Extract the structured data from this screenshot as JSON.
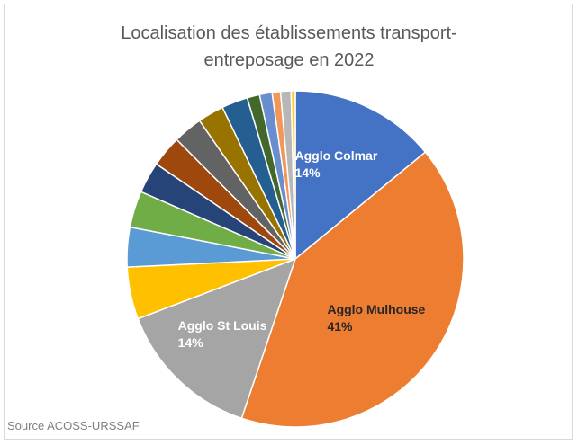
{
  "chart_data": {
    "type": "pie",
    "title": "Localisation des établissements transport-entreposage en 2022",
    "source": "Source ACOSS-URSSAF",
    "categories": [
      "Agglo Colmar",
      "Agglo Mulhouse",
      "Agglo St Louis",
      null,
      null,
      null,
      null,
      null,
      null,
      null,
      null,
      null,
      null,
      null,
      null,
      null
    ],
    "values": [
      14,
      41,
      14,
      5,
      3.8,
      3.5,
      3,
      3,
      2.8,
      2.5,
      2.5,
      1.2,
      1.2,
      0.8,
      1,
      0.4
    ],
    "value_labels": [
      "14%",
      "41%",
      "14%",
      null,
      null,
      null,
      null,
      null,
      null,
      null,
      null,
      null,
      null,
      null,
      null,
      null
    ],
    "colors": [
      "#4472C4",
      "#ED7D31",
      "#A5A5A5",
      "#FFC000",
      "#5B9BD5",
      "#70AD47",
      "#264478",
      "#9E480E",
      "#636363",
      "#997300",
      "#255E91",
      "#43682B",
      "#698ED0",
      "#F1975A",
      "#B7B7B7",
      "#FFCD33"
    ]
  }
}
